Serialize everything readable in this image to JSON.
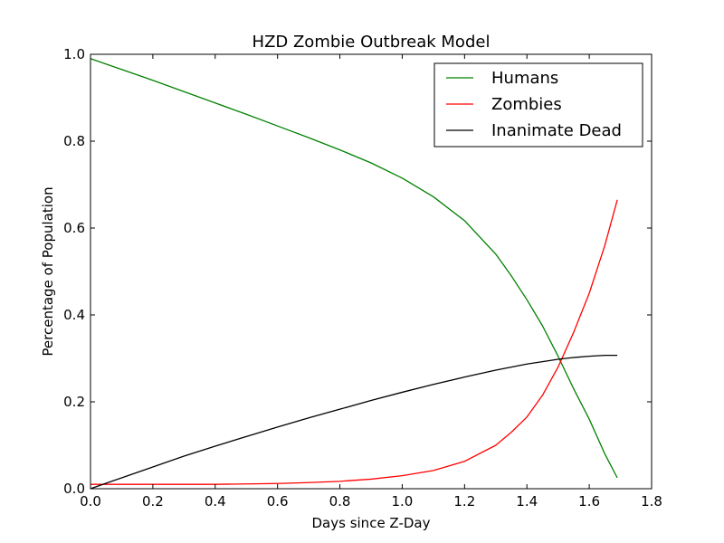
{
  "chart_data": {
    "type": "line",
    "title": "HZD Zombie Outbreak Model",
    "xlabel": "Days since Z-Day",
    "ylabel": "Percentage of Population",
    "xlim": [
      0.0,
      1.8
    ],
    "ylim": [
      0.0,
      1.0
    ],
    "xticks": [
      "0.0",
      "0.2",
      "0.4",
      "0.6",
      "0.8",
      "1.0",
      "1.2",
      "1.4",
      "1.6",
      "1.8"
    ],
    "yticks": [
      "0.0",
      "0.2",
      "0.4",
      "0.6",
      "0.8",
      "1.0"
    ],
    "xtick_values": [
      0.0,
      0.2,
      0.4,
      0.6,
      0.8,
      1.0,
      1.2,
      1.4,
      1.6,
      1.8
    ],
    "ytick_values": [
      0.0,
      0.2,
      0.4,
      0.6,
      0.8,
      1.0
    ],
    "grid": false,
    "legend_position": "top-right",
    "series": [
      {
        "name": "Humans",
        "color": "#008000",
        "x": [
          0.0,
          0.1,
          0.2,
          0.3,
          0.4,
          0.5,
          0.6,
          0.7,
          0.8,
          0.9,
          1.0,
          1.1,
          1.2,
          1.3,
          1.35,
          1.4,
          1.45,
          1.5,
          1.55,
          1.6,
          1.65,
          1.69
        ],
        "y": [
          0.99,
          0.965,
          0.94,
          0.914,
          0.888,
          0.862,
          0.835,
          0.808,
          0.78,
          0.75,
          0.715,
          0.672,
          0.617,
          0.54,
          0.49,
          0.435,
          0.375,
          0.305,
          0.23,
          0.16,
          0.08,
          0.025
        ]
      },
      {
        "name": "Zombies",
        "color": "#ff0000",
        "x": [
          0.0,
          0.1,
          0.2,
          0.3,
          0.4,
          0.5,
          0.6,
          0.7,
          0.8,
          0.9,
          1.0,
          1.1,
          1.2,
          1.3,
          1.35,
          1.4,
          1.45,
          1.5,
          1.55,
          1.6,
          1.65,
          1.69
        ],
        "y": [
          0.01,
          0.01,
          0.01,
          0.01,
          0.01,
          0.011,
          0.012,
          0.014,
          0.017,
          0.022,
          0.03,
          0.042,
          0.063,
          0.1,
          0.13,
          0.165,
          0.215,
          0.28,
          0.36,
          0.45,
          0.56,
          0.665
        ]
      },
      {
        "name": "Inanimate Dead",
        "color": "#000000",
        "x": [
          0.0,
          0.1,
          0.2,
          0.3,
          0.4,
          0.5,
          0.6,
          0.7,
          0.8,
          0.9,
          1.0,
          1.1,
          1.2,
          1.3,
          1.4,
          1.5,
          1.55,
          1.6,
          1.65,
          1.69
        ],
        "y": [
          0.0,
          0.025,
          0.05,
          0.075,
          0.098,
          0.12,
          0.142,
          0.163,
          0.183,
          0.203,
          0.222,
          0.24,
          0.257,
          0.273,
          0.287,
          0.298,
          0.302,
          0.305,
          0.307,
          0.307
        ]
      }
    ]
  }
}
